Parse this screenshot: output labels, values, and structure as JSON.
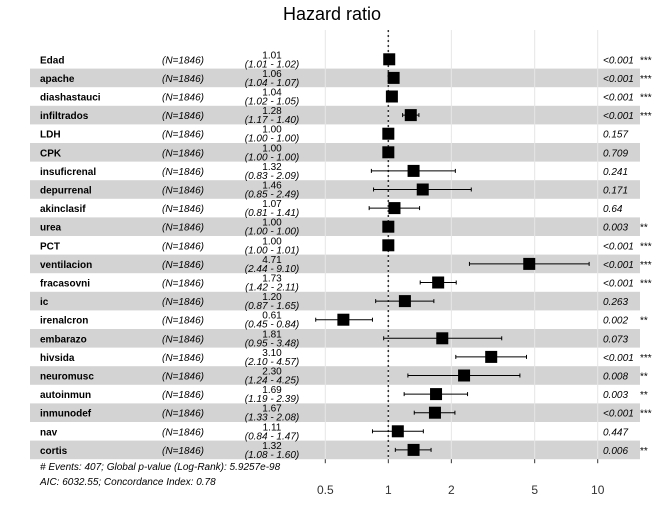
{
  "chart_data": {
    "type": "forest",
    "title": "Hazard ratio",
    "xscale": "log",
    "xlim": [
      0.4,
      13.5
    ],
    "xticks": [
      0.5,
      1,
      2,
      5,
      10
    ],
    "xtick_labels": [
      "0.5",
      "1",
      "2",
      "5",
      "10"
    ],
    "reference_line": 1,
    "rows": [
      {
        "var": "Edad",
        "n": "(N=1846)",
        "hr": 1.01,
        "hr_label": "1.01",
        "lo": 1.01,
        "hi": 1.02,
        "ci_label": "(1.01 - 1.02)",
        "p_label": "<0.001",
        "stars": "***"
      },
      {
        "var": "apache",
        "n": "(N=1846)",
        "hr": 1.06,
        "hr_label": "1.06",
        "lo": 1.04,
        "hi": 1.07,
        "ci_label": "(1.04 - 1.07)",
        "p_label": "<0.001",
        "stars": "***"
      },
      {
        "var": "diashastauci",
        "n": "(N=1846)",
        "hr": 1.04,
        "hr_label": "1.04",
        "lo": 1.02,
        "hi": 1.05,
        "ci_label": "(1.02 - 1.05)",
        "p_label": "<0.001",
        "stars": "***"
      },
      {
        "var": "infiltrados",
        "n": "(N=1846)",
        "hr": 1.28,
        "hr_label": "1.28",
        "lo": 1.17,
        "hi": 1.4,
        "ci_label": "(1.17 - 1.40)",
        "p_label": "<0.001",
        "stars": "***"
      },
      {
        "var": "LDH",
        "n": "(N=1846)",
        "hr": 1.0,
        "hr_label": "1.00",
        "lo": 1.0,
        "hi": 1.0,
        "ci_label": "(1.00 - 1.00)",
        "p_label": "0.157",
        "stars": ""
      },
      {
        "var": "CPK",
        "n": "(N=1846)",
        "hr": 1.0,
        "hr_label": "1.00",
        "lo": 1.0,
        "hi": 1.0,
        "ci_label": "(1.00 - 1.00)",
        "p_label": "0.709",
        "stars": ""
      },
      {
        "var": "insuficrenal",
        "n": "(N=1846)",
        "hr": 1.32,
        "hr_label": "1.32",
        "lo": 0.83,
        "hi": 2.09,
        "ci_label": "(0.83 - 2.09)",
        "p_label": "0.241",
        "stars": ""
      },
      {
        "var": "depurrenal",
        "n": "(N=1846)",
        "hr": 1.46,
        "hr_label": "1.46",
        "lo": 0.85,
        "hi": 2.49,
        "ci_label": "(0.85 - 2.49)",
        "p_label": "0.171",
        "stars": ""
      },
      {
        "var": "akinclasif",
        "n": "(N=1846)",
        "hr": 1.07,
        "hr_label": "1.07",
        "lo": 0.81,
        "hi": 1.41,
        "ci_label": "(0.81 - 1.41)",
        "p_label": "0.64",
        "stars": ""
      },
      {
        "var": "urea",
        "n": "(N=1846)",
        "hr": 1.0,
        "hr_label": "1.00",
        "lo": 1.0,
        "hi": 1.0,
        "ci_label": "(1.00 - 1.00)",
        "p_label": "0.003",
        "stars": "**"
      },
      {
        "var": "PCT",
        "n": "(N=1846)",
        "hr": 1.0,
        "hr_label": "1.00",
        "lo": 1.0,
        "hi": 1.01,
        "ci_label": "(1.00 - 1.01)",
        "p_label": "<0.001",
        "stars": "***"
      },
      {
        "var": "ventilacion",
        "n": "(N=1846)",
        "hr": 4.71,
        "hr_label": "4.71",
        "lo": 2.44,
        "hi": 9.1,
        "ci_label": "(2.44 - 9.10)",
        "p_label": "<0.001",
        "stars": "***"
      },
      {
        "var": "fracasovni",
        "n": "(N=1846)",
        "hr": 1.73,
        "hr_label": "1.73",
        "lo": 1.42,
        "hi": 2.11,
        "ci_label": "(1.42 - 2.11)",
        "p_label": "<0.001",
        "stars": "***"
      },
      {
        "var": "ic",
        "n": "(N=1846)",
        "hr": 1.2,
        "hr_label": "1.20",
        "lo": 0.87,
        "hi": 1.65,
        "ci_label": "(0.87 - 1.65)",
        "p_label": "0.263",
        "stars": ""
      },
      {
        "var": "irenalcron",
        "n": "(N=1846)",
        "hr": 0.61,
        "hr_label": "0.61",
        "lo": 0.45,
        "hi": 0.84,
        "ci_label": "(0.45 - 0.84)",
        "p_label": "0.002",
        "stars": "**"
      },
      {
        "var": "embarazo",
        "n": "(N=1846)",
        "hr": 1.81,
        "hr_label": "1.81",
        "lo": 0.95,
        "hi": 3.48,
        "ci_label": "(0.95 - 3.48)",
        "p_label": "0.073",
        "stars": ""
      },
      {
        "var": "hivsida",
        "n": "(N=1846)",
        "hr": 3.1,
        "hr_label": "3.10",
        "lo": 2.1,
        "hi": 4.57,
        "ci_label": "(2.10 - 4.57)",
        "p_label": "<0.001",
        "stars": "***"
      },
      {
        "var": "neuromusc",
        "n": "(N=1846)",
        "hr": 2.3,
        "hr_label": "2.30",
        "lo": 1.24,
        "hi": 4.25,
        "ci_label": "(1.24 - 4.25)",
        "p_label": "0.008",
        "stars": "**"
      },
      {
        "var": "autoinmun",
        "n": "(N=1846)",
        "hr": 1.69,
        "hr_label": "1.69",
        "lo": 1.19,
        "hi": 2.39,
        "ci_label": "(1.19 - 2.39)",
        "p_label": "0.003",
        "stars": "**"
      },
      {
        "var": "inmunodef",
        "n": "(N=1846)",
        "hr": 1.67,
        "hr_label": "1.67",
        "lo": 1.33,
        "hi": 2.08,
        "ci_label": "(1.33 - 2.08)",
        "p_label": "<0.001",
        "stars": "***"
      },
      {
        "var": "nav",
        "n": "(N=1846)",
        "hr": 1.11,
        "hr_label": "1.11",
        "lo": 0.84,
        "hi": 1.47,
        "ci_label": "(0.84 - 1.47)",
        "p_label": "0.447",
        "stars": ""
      },
      {
        "var": "cortis",
        "n": "(N=1846)",
        "hr": 1.32,
        "hr_label": "1.32",
        "lo": 1.08,
        "hi": 1.6,
        "ci_label": "(1.08 - 1.60)",
        "p_label": "0.006",
        "stars": "**"
      }
    ],
    "footer": [
      "# Events: 407; Global p-value (Log-Rank): 5.9257e-98",
      "AIC: 6032.55; Concordance Index: 0.78"
    ],
    "colors": {
      "band": "#d3d3d3",
      "marker": "#000000",
      "grid": "#e6e6e6",
      "refline": "#333333"
    }
  }
}
